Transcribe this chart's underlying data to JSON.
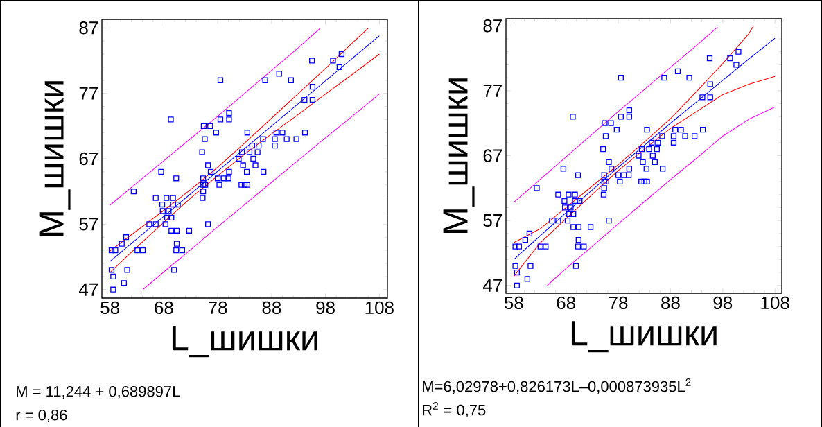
{
  "chart_data": [
    {
      "type": "scatter",
      "xlabel": "L_шишки",
      "ylabel": "M_шишки",
      "xlim": [
        56.5,
        109.5
      ],
      "ylim": [
        45.7,
        88.3
      ],
      "xticks": [
        58,
        68,
        78,
        88,
        98,
        108
      ],
      "yticks": [
        47,
        57,
        67,
        77,
        87
      ],
      "annotations": [
        "M = 11,244 + 0,689897L",
        "r = 0,86"
      ],
      "series": [
        {
          "marker": "square",
          "color": "#0000ff",
          "x": [
            101.0,
            95.5,
            99.4,
            100.6,
            89.4,
            78.5,
            86.8,
            91.6,
            95.6,
            94.1,
            95.6,
            80.1,
            69.3,
            78.5,
            80.1,
            75.4,
            76.6,
            77.7,
            83.5,
            88.9,
            90.0,
            94.2,
            75.6,
            86.4,
            88.6,
            90.8,
            92.6,
            88.6,
            84.4,
            85.6,
            75.1,
            82.5,
            83.9,
            85.4,
            81.9,
            84.6,
            76.2,
            82.7,
            85.0,
            67.5,
            76.7,
            80.1,
            83.4,
            86.5,
            70.3,
            75.3,
            78.0,
            79.1,
            80.0,
            75.3,
            75.7,
            78.3,
            82.4,
            83.0,
            83.5,
            75.3,
            62.4,
            75.2,
            66.5,
            68.5,
            69.7,
            67.7,
            69.7,
            70.6,
            67.8,
            68.9,
            68.6,
            69.4,
            65.3,
            66.5,
            68.3,
            76.2,
            69.4,
            70.4,
            72.7,
            61.0,
            60.2,
            70.4,
            58.3,
            59.0,
            63.1,
            64.1,
            70.3,
            71.4,
            58.3,
            61.2,
            69.9,
            58.6,
            60.6,
            58.6
          ],
          "values": [
            83,
            82,
            82,
            81,
            80,
            79,
            79,
            79,
            78,
            76,
            76,
            74,
            73,
            73,
            73,
            72,
            72,
            71,
            71,
            71,
            71,
            71,
            70,
            70,
            70,
            70,
            70,
            69,
            69,
            69,
            68,
            68,
            68,
            68,
            67,
            67,
            66,
            66,
            66,
            65,
            65,
            65,
            65,
            65,
            64,
            64,
            64,
            64,
            64,
            63,
            63,
            63,
            63,
            63,
            63,
            62,
            62,
            61,
            61,
            61,
            61,
            60,
            60,
            60,
            59,
            59,
            58,
            58,
            57,
            57,
            57,
            57,
            56,
            56,
            56,
            55,
            54,
            54,
            53,
            53,
            53,
            53,
            53,
            53,
            50,
            50,
            50,
            49,
            48,
            47
          ]
        },
        {
          "type": "line",
          "color": "#0000ff",
          "x": [
            58,
            108
          ],
          "values": [
            51.3,
            85.8
          ]
        },
        {
          "type": "line",
          "color": "#ff0000",
          "x": [
            58,
            63,
            68,
            73,
            78,
            83,
            88,
            93,
            98,
            103,
            106
          ],
          "values": [
            52.9,
            56.0,
            59.1,
            62.3,
            65.7,
            69.4,
            73.2,
            77.0,
            80.8,
            84.7,
            87.0
          ]
        },
        {
          "type": "line",
          "color": "#ff0000",
          "x": [
            58,
            63,
            68,
            73,
            78,
            83,
            88,
            93,
            98,
            103,
            108
          ],
          "values": [
            49.6,
            53.5,
            57.3,
            61.0,
            64.4,
            67.7,
            70.8,
            73.8,
            76.9,
            79.9,
            83.0
          ]
        },
        {
          "type": "line",
          "color": "#ff00ff",
          "x": [
            58,
            63,
            68,
            73,
            78,
            83,
            88,
            93,
            97.1
          ],
          "values": [
            59.9,
            63.3,
            66.7,
            70.1,
            73.5,
            77.0,
            80.5,
            84.0,
            87.0
          ]
        },
        {
          "type": "line",
          "color": "#ff00ff",
          "x": [
            64.1,
            68,
            73,
            78,
            83,
            88,
            93,
            98,
            103,
            108
          ],
          "values": [
            47.0,
            49.7,
            53.1,
            56.6,
            60.0,
            63.4,
            66.8,
            70.2,
            73.5,
            76.9
          ]
        }
      ]
    },
    {
      "type": "scatter",
      "xlabel": "L_шишки",
      "ylabel": "M_шишки",
      "xlim": [
        56.5,
        109.3
      ],
      "ylim": [
        45.8,
        88.1
      ],
      "xticks": [
        58,
        68,
        78,
        88,
        98,
        108
      ],
      "yticks": [
        47,
        57,
        67,
        77,
        87
      ],
      "annotations": [
        "M=6,02978+0,826173L–0,000873935L$^{2}$",
        "R$^{2}$ = 0,75"
      ],
      "series": [
        {
          "marker": "square",
          "color": "#0000ff",
          "x": [
            101.0,
            95.5,
            99.4,
            100.6,
            89.4,
            78.5,
            86.8,
            91.6,
            95.6,
            94.1,
            95.6,
            80.1,
            69.3,
            78.5,
            80.1,
            75.4,
            76.6,
            77.7,
            83.5,
            88.9,
            90.0,
            94.2,
            75.6,
            86.4,
            88.6,
            90.8,
            92.6,
            88.6,
            84.4,
            85.6,
            75.1,
            82.5,
            83.9,
            85.4,
            81.9,
            84.6,
            76.2,
            82.7,
            85.0,
            67.5,
            76.7,
            80.1,
            83.4,
            86.5,
            70.3,
            75.3,
            78.0,
            79.1,
            80.0,
            75.3,
            75.7,
            78.3,
            82.4,
            83.0,
            83.5,
            75.3,
            62.4,
            75.2,
            66.5,
            68.5,
            69.7,
            67.7,
            69.7,
            70.6,
            67.8,
            68.9,
            68.6,
            69.4,
            65.3,
            66.5,
            68.3,
            76.2,
            69.4,
            70.4,
            72.7,
            61.0,
            60.2,
            70.4,
            58.3,
            59.0,
            63.1,
            64.1,
            70.3,
            71.4,
            58.3,
            61.2,
            69.9,
            58.6,
            60.6,
            58.6
          ],
          "values": [
            83,
            82,
            82,
            81,
            80,
            79,
            79,
            79,
            78,
            76,
            76,
            74,
            73,
            73,
            73,
            72,
            72,
            71,
            71,
            71,
            71,
            71,
            70,
            70,
            70,
            70,
            70,
            69,
            69,
            69,
            68,
            68,
            68,
            68,
            67,
            67,
            66,
            66,
            66,
            65,
            65,
            65,
            65,
            65,
            64,
            64,
            64,
            64,
            64,
            63,
            63,
            63,
            63,
            63,
            63,
            62,
            62,
            61,
            61,
            61,
            61,
            60,
            60,
            60,
            59,
            59,
            58,
            58,
            57,
            57,
            57,
            57,
            56,
            56,
            56,
            55,
            54,
            54,
            53,
            53,
            53,
            53,
            53,
            53,
            50,
            50,
            50,
            49,
            48,
            47
          ]
        },
        {
          "type": "line",
          "color": "#0000ff",
          "x": [
            58,
            63,
            68,
            73,
            78,
            83,
            88,
            93,
            98,
            103,
            108
          ],
          "values": [
            51.0,
            54.6,
            58.2,
            61.7,
            65.2,
            68.6,
            72.0,
            75.3,
            78.6,
            81.9,
            85.1
          ]
        },
        {
          "type": "line",
          "color": "#ff0000",
          "x": [
            58,
            63,
            68,
            73,
            78,
            83,
            88,
            93,
            98,
            103,
            103.9
          ],
          "values": [
            53.6,
            55.7,
            59.0,
            62.3,
            65.6,
            69.1,
            72.7,
            76.9,
            81.2,
            85.8,
            87.0
          ]
        },
        {
          "type": "line",
          "color": "#ff0000",
          "x": [
            58,
            63,
            68,
            73,
            78,
            83,
            88,
            93,
            98,
            103,
            108
          ],
          "values": [
            48.4,
            53.5,
            57.3,
            61.0,
            64.7,
            68.0,
            71.2,
            73.8,
            76.4,
            78.0,
            79.2
          ]
        },
        {
          "type": "line",
          "color": "#ff00ff",
          "x": [
            58,
            63,
            68,
            73,
            78,
            83,
            88,
            93,
            97
          ],
          "values": [
            59.8,
            63.3,
            66.8,
            70.3,
            73.8,
            77.2,
            80.6,
            84.0,
            86.8
          ]
        },
        {
          "type": "line",
          "color": "#ff00ff",
          "x": [
            64.4,
            68,
            73,
            78,
            83,
            88,
            93,
            98,
            103,
            108
          ],
          "values": [
            47.0,
            49.6,
            53.0,
            56.5,
            59.9,
            63.3,
            66.6,
            70.0,
            72.6,
            74.5
          ]
        }
      ]
    }
  ]
}
